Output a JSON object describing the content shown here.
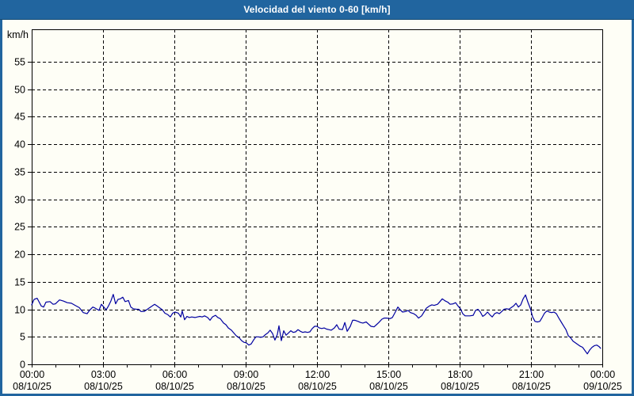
{
  "window": {
    "title": "Velocidad del viento 0-60 [km/h]"
  },
  "colors": {
    "frame": "#21659f",
    "titlebar_text": "#ffffff",
    "page_bg": "#fefef6",
    "axis": "#000000",
    "grid": "#000000",
    "label": "#000000",
    "line": "#0000a0"
  },
  "chart_data": {
    "type": "line",
    "title": "Velocidad del viento 0-60 [km/h]",
    "ylabel": "km/h",
    "ylim": [
      0,
      60
    ],
    "y_ticks": [
      0,
      5,
      10,
      15,
      20,
      25,
      30,
      35,
      40,
      45,
      50,
      55
    ],
    "x_hours_span": 24,
    "x_minor_tick_every_hours": 1,
    "x_major_tick_every_hours": 3,
    "grid": "dashed",
    "legend": "none",
    "x_tick_labels": [
      {
        "time": "00:00",
        "date": "08/10/25"
      },
      {
        "time": "03:00",
        "date": "08/10/25"
      },
      {
        "time": "06:00",
        "date": "08/10/25"
      },
      {
        "time": "09:00",
        "date": "08/10/25"
      },
      {
        "time": "12:00",
        "date": "08/10/25"
      },
      {
        "time": "15:00",
        "date": "08/10/25"
      },
      {
        "time": "18:00",
        "date": "08/10/25"
      },
      {
        "time": "21:00",
        "date": "08/10/25"
      },
      {
        "time": "00:00",
        "date": "09/10/25"
      }
    ],
    "series": [
      {
        "name": "Velocidad del viento",
        "color": "#0000a0",
        "points": [
          [
            0.0,
            10.8
          ],
          [
            0.1,
            11.8
          ],
          [
            0.23,
            12.0
          ],
          [
            0.4,
            10.6
          ],
          [
            0.5,
            10.4
          ],
          [
            0.6,
            11.3
          ],
          [
            0.77,
            11.4
          ],
          [
            0.9,
            10.9
          ],
          [
            1.0,
            11.0
          ],
          [
            1.17,
            11.7
          ],
          [
            1.33,
            11.5
          ],
          [
            1.5,
            11.2
          ],
          [
            1.67,
            11.1
          ],
          [
            1.83,
            10.7
          ],
          [
            2.0,
            10.3
          ],
          [
            2.17,
            9.4
          ],
          [
            2.33,
            9.2
          ],
          [
            2.43,
            9.8
          ],
          [
            2.57,
            10.4
          ],
          [
            2.67,
            10.2
          ],
          [
            2.83,
            9.8
          ],
          [
            2.93,
            10.9
          ],
          [
            3.03,
            10.4
          ],
          [
            3.13,
            9.9
          ],
          [
            3.23,
            10.6
          ],
          [
            3.33,
            11.5
          ],
          [
            3.43,
            12.7
          ],
          [
            3.53,
            11.0
          ],
          [
            3.63,
            11.8
          ],
          [
            3.73,
            11.9
          ],
          [
            3.83,
            12.2
          ],
          [
            3.93,
            11.4
          ],
          [
            4.07,
            11.6
          ],
          [
            4.17,
            10.4
          ],
          [
            4.27,
            10.1
          ],
          [
            4.4,
            10.0
          ],
          [
            4.5,
            10.0
          ],
          [
            4.6,
            9.6
          ],
          [
            4.73,
            9.6
          ],
          [
            4.83,
            9.9
          ],
          [
            4.93,
            10.2
          ],
          [
            5.07,
            10.6
          ],
          [
            5.17,
            10.9
          ],
          [
            5.27,
            10.6
          ],
          [
            5.4,
            10.2
          ],
          [
            5.5,
            9.9
          ],
          [
            5.6,
            9.3
          ],
          [
            5.73,
            9.0
          ],
          [
            5.83,
            8.6
          ],
          [
            5.93,
            9.3
          ],
          [
            6.03,
            9.5
          ],
          [
            6.17,
            9.3
          ],
          [
            6.27,
            8.6
          ],
          [
            6.33,
            9.7
          ],
          [
            6.43,
            8.1
          ],
          [
            6.53,
            8.7
          ],
          [
            6.63,
            8.5
          ],
          [
            6.73,
            8.6
          ],
          [
            6.87,
            8.5
          ],
          [
            6.97,
            8.6
          ],
          [
            7.07,
            8.7
          ],
          [
            7.17,
            8.6
          ],
          [
            7.27,
            8.8
          ],
          [
            7.4,
            8.5
          ],
          [
            7.5,
            8.0
          ],
          [
            7.6,
            8.6
          ],
          [
            7.73,
            8.9
          ],
          [
            7.83,
            8.5
          ],
          [
            7.93,
            8.3
          ],
          [
            8.07,
            7.5
          ],
          [
            8.17,
            7.2
          ],
          [
            8.27,
            6.6
          ],
          [
            8.4,
            6.2
          ],
          [
            8.5,
            5.7
          ],
          [
            8.6,
            5.2
          ],
          [
            8.73,
            4.8
          ],
          [
            8.83,
            4.3
          ],
          [
            8.93,
            4.0
          ],
          [
            9.03,
            3.9
          ],
          [
            9.13,
            3.5
          ],
          [
            9.23,
            3.7
          ],
          [
            9.33,
            4.4
          ],
          [
            9.43,
            5.0
          ],
          [
            9.53,
            5.0
          ],
          [
            9.63,
            4.9
          ],
          [
            9.73,
            5.0
          ],
          [
            9.83,
            5.4
          ],
          [
            9.93,
            5.7
          ],
          [
            10.03,
            6.2
          ],
          [
            10.13,
            5.6
          ],
          [
            10.23,
            4.4
          ],
          [
            10.33,
            5.4
          ],
          [
            10.4,
            7.0
          ],
          [
            10.5,
            4.3
          ],
          [
            10.6,
            6.1
          ],
          [
            10.7,
            5.3
          ],
          [
            10.8,
            5.7
          ],
          [
            10.9,
            6.1
          ],
          [
            11.0,
            5.8
          ],
          [
            11.1,
            5.9
          ],
          [
            11.2,
            6.3
          ],
          [
            11.3,
            6.0
          ],
          [
            11.4,
            5.8
          ],
          [
            11.5,
            5.9
          ],
          [
            11.6,
            5.8
          ],
          [
            11.7,
            5.9
          ],
          [
            11.8,
            6.5
          ],
          [
            11.9,
            6.9
          ],
          [
            12.0,
            6.9
          ],
          [
            12.1,
            6.6
          ],
          [
            12.2,
            6.5
          ],
          [
            12.3,
            6.6
          ],
          [
            12.4,
            6.4
          ],
          [
            12.5,
            6.3
          ],
          [
            12.6,
            6.2
          ],
          [
            12.73,
            6.6
          ],
          [
            12.83,
            7.2
          ],
          [
            12.93,
            6.4
          ],
          [
            13.07,
            6.3
          ],
          [
            13.17,
            7.6
          ],
          [
            13.27,
            6.0
          ],
          [
            13.4,
            6.9
          ],
          [
            13.5,
            8.0
          ],
          [
            13.6,
            8.0
          ],
          [
            13.73,
            7.8
          ],
          [
            13.83,
            7.6
          ],
          [
            13.93,
            7.5
          ],
          [
            14.07,
            7.7
          ],
          [
            14.17,
            7.3
          ],
          [
            14.27,
            6.9
          ],
          [
            14.4,
            6.8
          ],
          [
            14.5,
            7.2
          ],
          [
            14.6,
            7.6
          ],
          [
            14.73,
            8.2
          ],
          [
            14.83,
            8.4
          ],
          [
            14.93,
            8.4
          ],
          [
            15.07,
            8.3
          ],
          [
            15.17,
            8.5
          ],
          [
            15.27,
            9.3
          ],
          [
            15.4,
            10.4
          ],
          [
            15.5,
            9.9
          ],
          [
            15.6,
            9.5
          ],
          [
            15.73,
            9.6
          ],
          [
            15.83,
            9.8
          ],
          [
            15.93,
            9.4
          ],
          [
            16.07,
            9.2
          ],
          [
            16.17,
            8.9
          ],
          [
            16.27,
            8.4
          ],
          [
            16.4,
            8.8
          ],
          [
            16.5,
            9.5
          ],
          [
            16.6,
            10.2
          ],
          [
            16.73,
            10.6
          ],
          [
            16.83,
            10.8
          ],
          [
            16.93,
            10.7
          ],
          [
            17.07,
            10.9
          ],
          [
            17.17,
            11.4
          ],
          [
            17.27,
            11.9
          ],
          [
            17.4,
            11.5
          ],
          [
            17.5,
            11.3
          ],
          [
            17.6,
            10.9
          ],
          [
            17.73,
            11.0
          ],
          [
            17.83,
            11.2
          ],
          [
            17.93,
            10.6
          ],
          [
            18.03,
            10.1
          ],
          [
            18.13,
            9.2
          ],
          [
            18.23,
            8.8
          ],
          [
            18.33,
            8.8
          ],
          [
            18.43,
            8.8
          ],
          [
            18.57,
            8.9
          ],
          [
            18.67,
            9.8
          ],
          [
            18.77,
            10.0
          ],
          [
            18.87,
            9.5
          ],
          [
            18.97,
            8.7
          ],
          [
            19.07,
            9.0
          ],
          [
            19.17,
            9.5
          ],
          [
            19.27,
            9.0
          ],
          [
            19.37,
            8.6
          ],
          [
            19.47,
            9.2
          ],
          [
            19.57,
            9.4
          ],
          [
            19.67,
            9.2
          ],
          [
            19.77,
            9.6
          ],
          [
            19.87,
            10.0
          ],
          [
            19.97,
            10.1
          ],
          [
            20.07,
            10.0
          ],
          [
            20.17,
            10.3
          ],
          [
            20.27,
            10.6
          ],
          [
            20.37,
            11.1
          ],
          [
            20.47,
            10.4
          ],
          [
            20.57,
            10.8
          ],
          [
            20.67,
            11.9
          ],
          [
            20.77,
            12.6
          ],
          [
            20.87,
            11.3
          ],
          [
            20.97,
            10.2
          ],
          [
            21.07,
            8.6
          ],
          [
            21.17,
            7.8
          ],
          [
            21.27,
            7.7
          ],
          [
            21.37,
            7.8
          ],
          [
            21.47,
            8.5
          ],
          [
            21.57,
            9.3
          ],
          [
            21.67,
            9.7
          ],
          [
            21.77,
            9.5
          ],
          [
            21.87,
            9.4
          ],
          [
            21.97,
            9.5
          ],
          [
            22.07,
            9.2
          ],
          [
            22.17,
            8.4
          ],
          [
            22.27,
            7.7
          ],
          [
            22.37,
            7.0
          ],
          [
            22.47,
            6.3
          ],
          [
            22.57,
            5.2
          ],
          [
            22.67,
            4.8
          ],
          [
            22.77,
            4.2
          ],
          [
            22.87,
            3.9
          ],
          [
            22.97,
            3.6
          ],
          [
            23.07,
            3.3
          ],
          [
            23.17,
            3.1
          ],
          [
            23.27,
            2.5
          ],
          [
            23.37,
            1.9
          ],
          [
            23.47,
            2.6
          ],
          [
            23.57,
            3.1
          ],
          [
            23.67,
            3.4
          ],
          [
            23.77,
            3.5
          ],
          [
            23.87,
            3.2
          ],
          [
            23.93,
            2.9
          ]
        ]
      }
    ]
  }
}
